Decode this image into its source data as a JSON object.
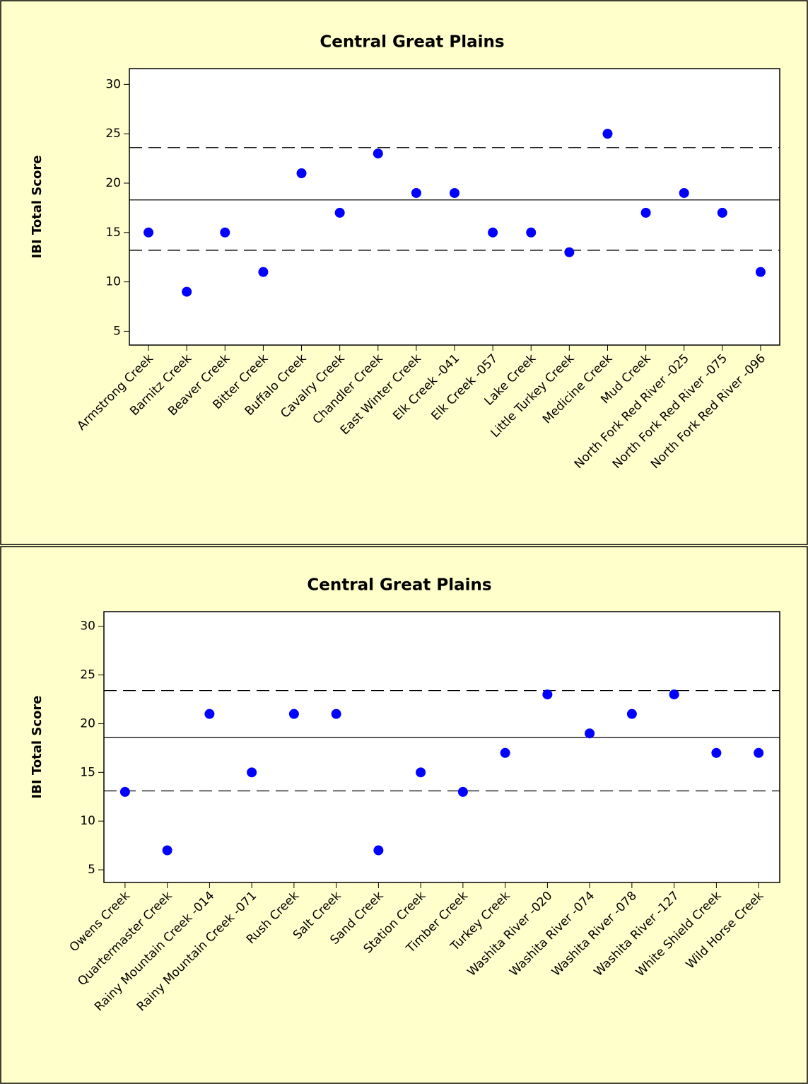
{
  "chart_data": [
    {
      "type": "dot",
      "title": "Central Great Plains",
      "y_label": "IBI Total Score",
      "categories": [
        "Armstrong Creek",
        "Barnitz Creek",
        "Beaver Creek",
        "Bitter Creek",
        "Buffalo Creek",
        "Cavalry Creek",
        "Chandler Creek",
        "East Winter Creek",
        "Elk Creek -041",
        "Elk Creek -057",
        "Lake Creek",
        "Little Turkey Creek",
        "Medicine Creek",
        "Mud Creek",
        "North Fork Red River -025",
        "North Fork Red River -075",
        "North Fork Red River -096"
      ],
      "values": [
        15,
        9,
        15,
        11,
        21,
        17,
        23,
        19,
        19,
        15,
        15,
        13,
        25,
        17,
        19,
        17,
        11
      ],
      "color": "#0000ff",
      "ylim": [
        3.6,
        31.6
      ],
      "yticks": [
        5,
        10,
        15,
        20,
        25,
        30
      ],
      "reference_lines": [
        {
          "value": 23.6,
          "style": "dashed"
        },
        {
          "value": 18.3,
          "style": "solid"
        },
        {
          "value": 13.2,
          "style": "dashed"
        }
      ]
    },
    {
      "type": "dot",
      "title": "Central Great Plains",
      "y_label": "IBI Total Score",
      "categories": [
        "Owens Creek",
        "Quartermaster Creek",
        "Rainy Mountain Creek -014",
        "Rainy Mountain Creek -071",
        "Rush Creek",
        "Salt Creek",
        "Sand Creek",
        "Station Creek",
        "Timber Creek",
        "Turkey Creek",
        "Washita River -020",
        "Washita River -074",
        "Washita River -078",
        "Washita River -127",
        "White Shield Creek",
        "Wild Horse Creek"
      ],
      "values": [
        13,
        7,
        21,
        15,
        21,
        21,
        7,
        15,
        13,
        17,
        23,
        19,
        21,
        23,
        17,
        17
      ],
      "color": "#0000ff",
      "ylim": [
        3.7,
        31.5
      ],
      "yticks": [
        5,
        10,
        15,
        20,
        25,
        30
      ],
      "reference_lines": [
        {
          "value": 23.4,
          "style": "dashed"
        },
        {
          "value": 18.6,
          "style": "solid"
        },
        {
          "value": 13.1,
          "style": "dashed"
        }
      ]
    }
  ]
}
